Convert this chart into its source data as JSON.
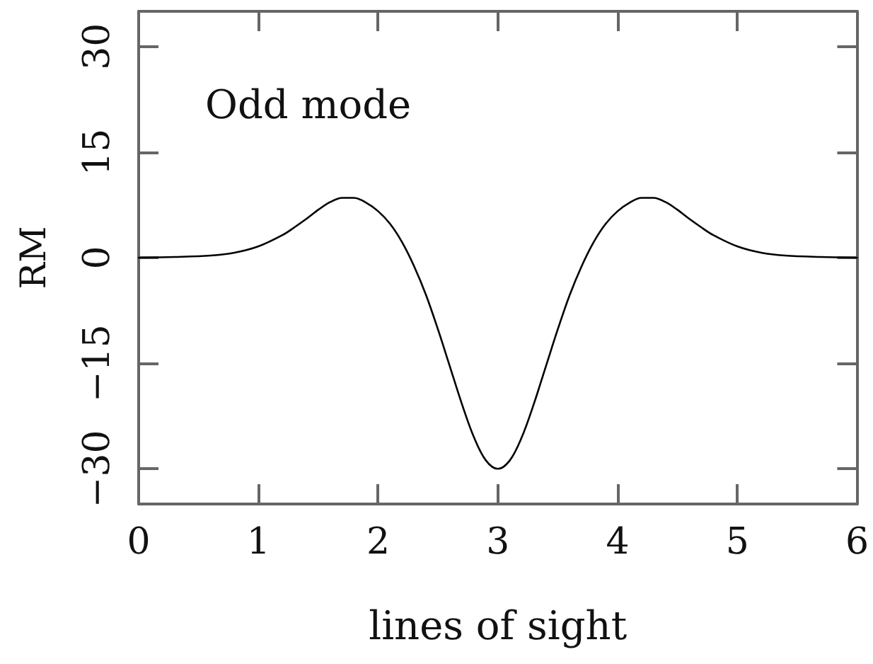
{
  "chart_data": {
    "type": "line",
    "xlabel": "lines of sight",
    "ylabel": "RM",
    "annotations": [
      "Odd mode"
    ],
    "x": [
      0,
      0.3,
      0.6,
      0.8,
      1.0,
      1.2,
      1.3,
      1.4,
      1.5,
      1.6,
      1.7,
      1.8,
      1.9,
      2.0,
      2.1,
      2.2,
      2.3,
      2.4,
      2.5,
      2.6,
      2.7,
      2.8,
      2.9,
      3.0,
      3.1,
      3.2,
      3.3,
      3.4,
      3.5,
      3.6,
      3.7,
      3.8,
      3.9,
      4.0,
      4.1,
      4.2,
      4.3,
      4.4,
      4.5,
      4.6,
      4.7,
      4.8,
      5.0,
      5.2,
      5.4,
      5.7,
      6.0
    ],
    "values": [
      0,
      0.1,
      0.3,
      0.7,
      1.6,
      3.2,
      4.3,
      5.5,
      6.8,
      7.9,
      8.5,
      8.5,
      7.8,
      6.6,
      4.8,
      2.2,
      -1.2,
      -5.3,
      -10.2,
      -15.5,
      -20.8,
      -25.5,
      -28.8,
      -30,
      -28.8,
      -25.5,
      -20.8,
      -15.5,
      -10.2,
      -5.3,
      -1.2,
      2.2,
      4.8,
      6.6,
      7.8,
      8.5,
      8.5,
      7.9,
      6.8,
      5.5,
      4.3,
      3.2,
      1.6,
      0.7,
      0.3,
      0.1,
      0
    ],
    "color": "#000000",
    "marker": "none",
    "line_style": "solid",
    "grid": false,
    "xlim": [
      0,
      6
    ],
    "xticks": [
      0,
      1,
      2,
      3,
      4,
      5,
      6
    ],
    "ylim": [
      -35,
      35
    ],
    "yticks": [
      {
        "value": -30,
        "label": "−30"
      },
      {
        "value": -15,
        "label": "−15"
      },
      0,
      15,
      30
    ]
  }
}
